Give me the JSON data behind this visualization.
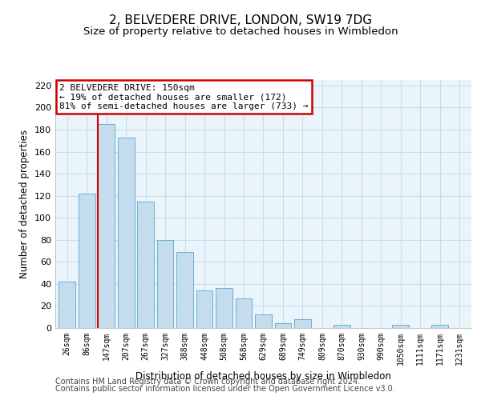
{
  "title": "2, BELVEDERE DRIVE, LONDON, SW19 7DG",
  "subtitle": "Size of property relative to detached houses in Wimbledon",
  "xlabel": "Distribution of detached houses by size in Wimbledon",
  "ylabel": "Number of detached properties",
  "footer_line1": "Contains HM Land Registry data © Crown copyright and database right 2024.",
  "footer_line2": "Contains public sector information licensed under the Open Government Licence v3.0.",
  "bar_labels": [
    "26sqm",
    "86sqm",
    "147sqm",
    "207sqm",
    "267sqm",
    "327sqm",
    "388sqm",
    "448sqm",
    "508sqm",
    "568sqm",
    "629sqm",
    "689sqm",
    "749sqm",
    "809sqm",
    "870sqm",
    "930sqm",
    "990sqm",
    "1050sqm",
    "1111sqm",
    "1171sqm",
    "1231sqm"
  ],
  "bar_values": [
    42,
    122,
    185,
    173,
    115,
    80,
    69,
    34,
    36,
    27,
    12,
    4,
    8,
    0,
    3,
    0,
    0,
    3,
    0,
    3,
    0
  ],
  "bar_color": "#c5dced",
  "bar_edge_color": "#6aaed6",
  "highlight_index": 2,
  "highlight_line_color": "#cc0000",
  "annotation_text": "2 BELVEDERE DRIVE: 150sqm\n← 19% of detached houses are smaller (172)\n81% of semi-detached houses are larger (733) →",
  "annotation_box_edge": "#cc0000",
  "ylim": [
    0,
    225
  ],
  "yticks": [
    0,
    20,
    40,
    60,
    80,
    100,
    120,
    140,
    160,
    180,
    200,
    220
  ],
  "grid_color": "#c8dced",
  "bg_color": "#eaf4fb",
  "title_fontsize": 11,
  "subtitle_fontsize": 9.5,
  "footer_fontsize": 7
}
